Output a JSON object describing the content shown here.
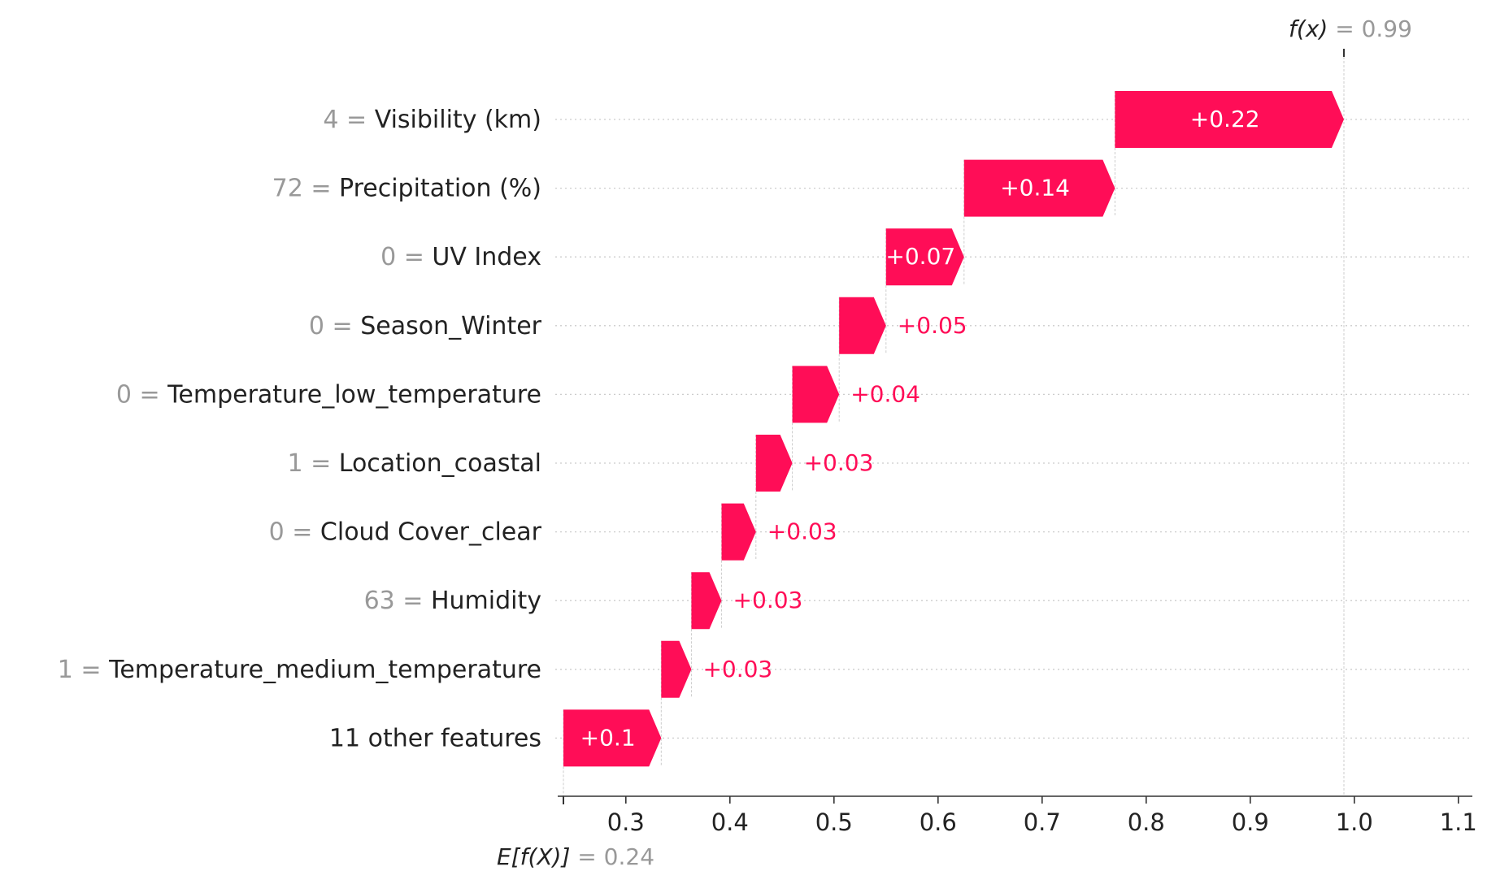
{
  "chart_data": {
    "type": "waterfall",
    "title": "",
    "xlabel": "",
    "ylabel": "",
    "base_value": 0.24,
    "base_label_main": "E[f(X)]",
    "base_label_value": " = 0.24",
    "output_value": 0.99,
    "output_label_main": "f(x)",
    "output_label_value": " = 0.99",
    "xlim": [
      0.24,
      1.12
    ],
    "xticks": [
      0.3,
      0.4,
      0.5,
      0.6,
      0.7,
      0.8,
      0.9,
      1.0,
      1.1
    ],
    "xtick_labels": [
      "0.3",
      "0.4",
      "0.5",
      "0.6",
      "0.7",
      "0.8",
      "0.9",
      "1.0",
      "1.1"
    ],
    "positive_color": "#ff0d57",
    "gridline_color": "#cccccc",
    "features": [
      {
        "feature_value": "4",
        "name": "Visibility (km)",
        "contribution": 0.22,
        "label": "+0.22",
        "start": 0.77,
        "end": 0.99
      },
      {
        "feature_value": "72",
        "name": "Precipitation (%)",
        "contribution": 0.14,
        "label": "+0.14",
        "start": 0.625,
        "end": 0.77
      },
      {
        "feature_value": "0",
        "name": "UV Index",
        "contribution": 0.07,
        "label": "+0.07",
        "start": 0.55,
        "end": 0.625
      },
      {
        "feature_value": "0",
        "name": "Season_Winter",
        "contribution": 0.05,
        "label": "+0.05",
        "start": 0.505,
        "end": 0.55
      },
      {
        "feature_value": "0",
        "name": "Temperature_low_temperature",
        "contribution": 0.04,
        "label": "+0.04",
        "start": 0.46,
        "end": 0.505
      },
      {
        "feature_value": "1",
        "name": "Location_coastal",
        "contribution": 0.03,
        "label": "+0.03",
        "start": 0.425,
        "end": 0.46
      },
      {
        "feature_value": "0",
        "name": "Cloud Cover_clear",
        "contribution": 0.03,
        "label": "+0.03",
        "start": 0.392,
        "end": 0.425
      },
      {
        "feature_value": "63",
        "name": "Humidity",
        "contribution": 0.03,
        "label": "+0.03",
        "start": 0.363,
        "end": 0.392
      },
      {
        "feature_value": "1",
        "name": "Temperature_medium_temperature",
        "contribution": 0.03,
        "label": "+0.03",
        "start": 0.334,
        "end": 0.363
      },
      {
        "feature_value": "",
        "name": "11 other features",
        "contribution": 0.1,
        "label": "+0.1",
        "start": 0.24,
        "end": 0.334
      }
    ]
  }
}
